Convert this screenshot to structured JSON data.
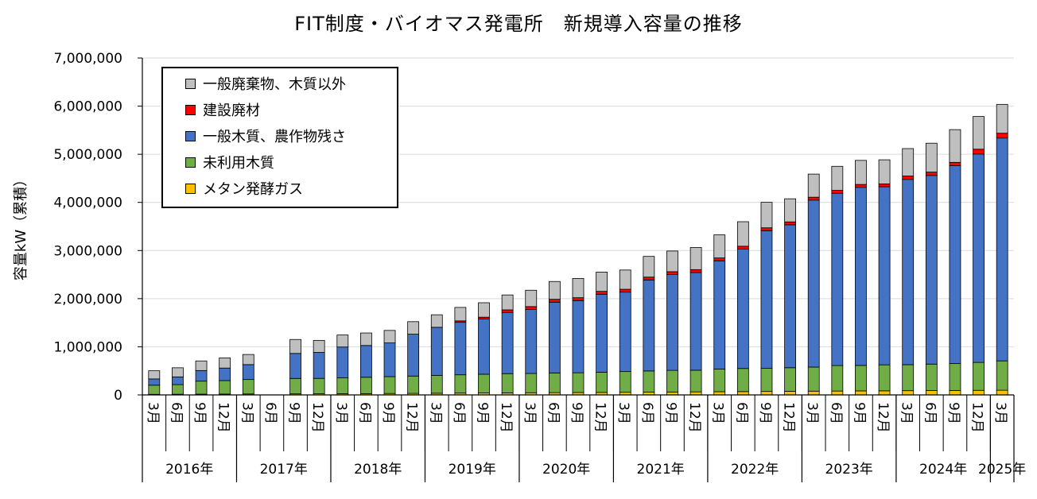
{
  "chart_data": {
    "type": "bar",
    "stacked": true,
    "title": "FIT制度・バイオマス発電所　新規導入容量の推移",
    "ylabel": "容量kW（累積）",
    "ylim": [
      0,
      7000000
    ],
    "yticks": [
      "0",
      "1,000,000",
      "2,000,000",
      "3,000,000",
      "4,000,000",
      "5,000,000",
      "6,000,000",
      "7,000,000"
    ],
    "grid": true,
    "legend_position": "top-left",
    "months": [
      "3月",
      "6月",
      "9月",
      "12月",
      "3月",
      "6月",
      "9月",
      "12月",
      "3月",
      "6月",
      "9月",
      "12月",
      "3月",
      "6月",
      "9月",
      "12月",
      "3月",
      "6月",
      "9月",
      "12月",
      "3月",
      "6月",
      "9月",
      "12月",
      "3月",
      "6月",
      "9月",
      "12月",
      "3月",
      "6月",
      "9月",
      "12月",
      "3月",
      "6月",
      "9月",
      "12月",
      "3月"
    ],
    "years": [
      {
        "label": "2016年"
      },
      {
        "label": "2017年"
      },
      {
        "label": "2018年"
      },
      {
        "label": "2019年"
      },
      {
        "label": "2020年"
      },
      {
        "label": "2021年"
      },
      {
        "label": "2022年"
      },
      {
        "label": "2023年"
      },
      {
        "label": "2024年"
      },
      {
        "label": "2025年"
      }
    ],
    "series": [
      {
        "name": "メタン発酵ガス",
        "color": "#ffc000",
        "values": [
          12000,
          14000,
          16000,
          18000,
          20000,
          null,
          22000,
          23000,
          25000,
          27000,
          30000,
          32000,
          35000,
          38000,
          40000,
          42000,
          45000,
          47000,
          50000,
          52000,
          55000,
          58000,
          60000,
          63000,
          66000,
          69000,
          72000,
          75000,
          78000,
          80000,
          83000,
          85000,
          88000,
          90000,
          92000,
          95000,
          97000
        ]
      },
      {
        "name": "未利用木質",
        "color": "#70ad47",
        "values": [
          190000,
          200000,
          270000,
          280000,
          300000,
          null,
          320000,
          320000,
          330000,
          340000,
          350000,
          360000,
          370000,
          380000,
          390000,
          400000,
          400000,
          410000,
          410000,
          420000,
          430000,
          440000,
          450000,
          450000,
          470000,
          480000,
          480000,
          490000,
          500000,
          530000,
          530000,
          540000,
          540000,
          550000,
          560000,
          580000,
          610000
        ]
      },
      {
        "name": "一般木質、農作物残さ",
        "color": "#4472c4",
        "values": [
          130000,
          160000,
          220000,
          260000,
          310000,
          null,
          520000,
          540000,
          640000,
          660000,
          700000,
          870000,
          1000000,
          1090000,
          1150000,
          1270000,
          1330000,
          1470000,
          1500000,
          1620000,
          1650000,
          1890000,
          1990000,
          2030000,
          2250000,
          2480000,
          2860000,
          2970000,
          3470000,
          3580000,
          3700000,
          3700000,
          3850000,
          3920000,
          4110000,
          4330000,
          4630000
        ]
      },
      {
        "name": "建設廃材",
        "color": "#ff0000",
        "values": [
          0,
          0,
          0,
          0,
          0,
          null,
          0,
          0,
          0,
          0,
          0,
          0,
          0,
          30000,
          35000,
          55000,
          60000,
          60000,
          60000,
          60000,
          60000,
          60000,
          60000,
          60000,
          60000,
          60000,
          60000,
          60000,
          60000,
          60000,
          60000,
          60000,
          70000,
          70000,
          70000,
          100000,
          100000
        ]
      },
      {
        "name": "一般廃棄物、木質以外",
        "color": "#bfbfbf",
        "values": [
          170000,
          190000,
          200000,
          210000,
          210000,
          null,
          290000,
          250000,
          250000,
          260000,
          260000,
          260000,
          260000,
          280000,
          300000,
          310000,
          340000,
          370000,
          400000,
          400000,
          400000,
          430000,
          430000,
          460000,
          480000,
          510000,
          530000,
          480000,
          480000,
          500000,
          500000,
          500000,
          570000,
          600000,
          680000,
          680000,
          600000
        ]
      }
    ]
  }
}
